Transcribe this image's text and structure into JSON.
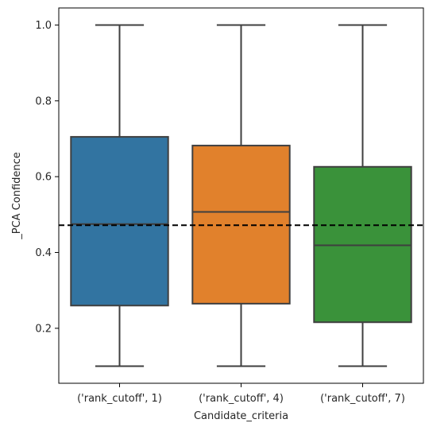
{
  "chart_data": {
    "type": "box",
    "title": "",
    "xlabel": "Candidate_criteria",
    "ylabel": "_PCA Confidence",
    "categories": [
      "('rank_cutoff', 1)",
      "('rank_cutoff', 4)",
      "('rank_cutoff', 7)"
    ],
    "boxes": [
      {
        "category": "('rank_cutoff', 1)",
        "whisker_low": 0.1,
        "q1": 0.26,
        "median": 0.475,
        "q3": 0.705,
        "whisker_high": 1.0,
        "color": "#3274a1"
      },
      {
        "category": "('rank_cutoff', 4)",
        "whisker_low": 0.1,
        "q1": 0.265,
        "median": 0.507,
        "q3": 0.682,
        "whisker_high": 1.0,
        "color": "#e1812c"
      },
      {
        "category": "('rank_cutoff', 7)",
        "whisker_low": 0.1,
        "q1": 0.216,
        "median": 0.419,
        "q3": 0.626,
        "whisker_high": 1.0,
        "color": "#3a923a"
      }
    ],
    "reference_line": {
      "value": 0.472,
      "style": "dashed",
      "color": "#000000"
    },
    "yticks": [
      0.2,
      0.4,
      0.6,
      0.8,
      1.0
    ],
    "ytick_labels": [
      "0.2",
      "0.4",
      "0.6",
      "0.8",
      "1.0"
    ],
    "ylim": [
      0.055,
      1.045
    ],
    "grid": false,
    "legend": "none"
  }
}
